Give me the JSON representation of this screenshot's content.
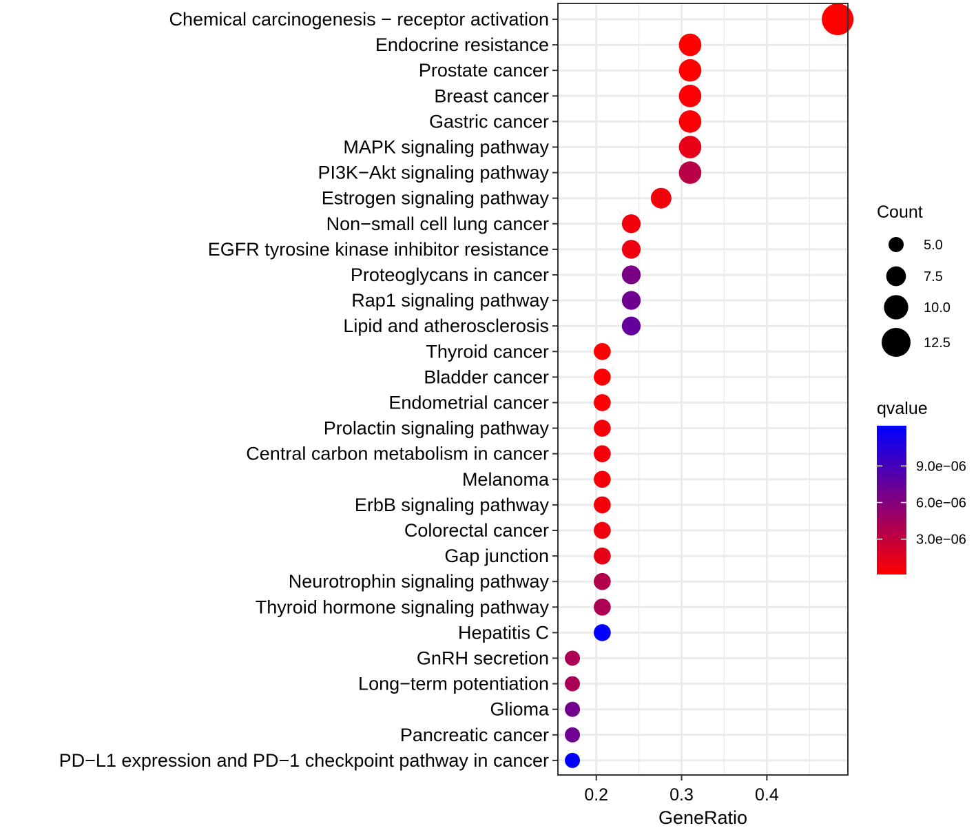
{
  "chart_data": {
    "type": "scatter",
    "xlabel": "GeneRatio",
    "ylabel": "",
    "xlim": [
      0.155,
      0.495
    ],
    "x_ticks": [
      0.2,
      0.3,
      0.4
    ],
    "x_tick_labels": [
      "0.2",
      "0.3",
      "0.4"
    ],
    "grid": true,
    "legend_position": "right",
    "points": [
      {
        "term": "Chemical carcinogenesis − receptor activation",
        "gene_ratio": 0.483,
        "count": 14,
        "qvalue": 1e-07
      },
      {
        "term": "Endocrine resistance",
        "gene_ratio": 0.31,
        "count": 9,
        "qvalue": 1e-07
      },
      {
        "term": "Prostate cancer",
        "gene_ratio": 0.31,
        "count": 9,
        "qvalue": 2e-07
      },
      {
        "term": "Breast cancer",
        "gene_ratio": 0.31,
        "count": 9,
        "qvalue": 3e-07
      },
      {
        "term": "Gastric cancer",
        "gene_ratio": 0.31,
        "count": 9,
        "qvalue": 3e-07
      },
      {
        "term": "MAPK signaling pathway",
        "gene_ratio": 0.31,
        "count": 9,
        "qvalue": 1.2e-06
      },
      {
        "term": "PI3K−Akt signaling pathway",
        "gene_ratio": 0.31,
        "count": 9,
        "qvalue": 3.5e-06
      },
      {
        "term": "Estrogen signaling pathway",
        "gene_ratio": 0.276,
        "count": 8,
        "qvalue": 6e-07
      },
      {
        "term": "Non−small cell lung cancer",
        "gene_ratio": 0.241,
        "count": 7,
        "qvalue": 7e-07
      },
      {
        "term": "EGFR tyrosine kinase inhibitor resistance",
        "gene_ratio": 0.241,
        "count": 7,
        "qvalue": 9e-07
      },
      {
        "term": "Proteoglycans in cancer",
        "gene_ratio": 0.241,
        "count": 7,
        "qvalue": 6.5e-06
      },
      {
        "term": "Rap1 signaling pathway",
        "gene_ratio": 0.241,
        "count": 7,
        "qvalue": 7e-06
      },
      {
        "term": "Lipid and atherosclerosis",
        "gene_ratio": 0.241,
        "count": 7,
        "qvalue": 7.5e-06
      },
      {
        "term": "Thyroid cancer",
        "gene_ratio": 0.207,
        "count": 6,
        "qvalue": 2e-07
      },
      {
        "term": "Bladder cancer",
        "gene_ratio": 0.207,
        "count": 6,
        "qvalue": 2e-07
      },
      {
        "term": "Endometrial cancer",
        "gene_ratio": 0.207,
        "count": 6,
        "qvalue": 3e-07
      },
      {
        "term": "Prolactin signaling pathway",
        "gene_ratio": 0.207,
        "count": 6,
        "qvalue": 6e-07
      },
      {
        "term": "Central carbon metabolism in cancer",
        "gene_ratio": 0.207,
        "count": 6,
        "qvalue": 6e-07
      },
      {
        "term": "Melanoma",
        "gene_ratio": 0.207,
        "count": 6,
        "qvalue": 6e-07
      },
      {
        "term": "ErbB signaling pathway",
        "gene_ratio": 0.207,
        "count": 6,
        "qvalue": 6.5e-07
      },
      {
        "term": "Colorectal cancer",
        "gene_ratio": 0.207,
        "count": 6,
        "qvalue": 8e-07
      },
      {
        "term": "Gap junction",
        "gene_ratio": 0.207,
        "count": 6,
        "qvalue": 1.2e-06
      },
      {
        "term": "Neurotrophin signaling pathway",
        "gene_ratio": 0.207,
        "count": 6,
        "qvalue": 3.8e-06
      },
      {
        "term": "Thyroid hormone signaling pathway",
        "gene_ratio": 0.207,
        "count": 6,
        "qvalue": 4e-06
      },
      {
        "term": "Hepatitis C",
        "gene_ratio": 0.207,
        "count": 6,
        "qvalue": 1.22e-05
      },
      {
        "term": "GnRH secretion",
        "gene_ratio": 0.172,
        "count": 5,
        "qvalue": 4e-06
      },
      {
        "term": "Long−term potentiation",
        "gene_ratio": 0.172,
        "count": 5,
        "qvalue": 4.2e-06
      },
      {
        "term": "Glioma",
        "gene_ratio": 0.172,
        "count": 5,
        "qvalue": 6.8e-06
      },
      {
        "term": "Pancreatic cancer",
        "gene_ratio": 0.172,
        "count": 5,
        "qvalue": 7e-06
      },
      {
        "term": "PD−L1 expression and PD−1 checkpoint pathway in cancer",
        "gene_ratio": 0.172,
        "count": 5,
        "qvalue": 1.23e-05
      }
    ],
    "size_legend": {
      "title": "Count",
      "breaks": [
        5.0,
        7.5,
        10.0,
        12.5
      ],
      "labels": [
        "5.0",
        "7.5",
        "10.0",
        "12.5"
      ],
      "range": [
        5,
        14
      ]
    },
    "color_legend": {
      "title": "qvalue",
      "low_color": "#ff0000",
      "high_color": "#0000ff",
      "domain": [
        1e-07,
        1.23e-05
      ],
      "breaks": [
        3e-06,
        6e-06,
        9e-06
      ],
      "labels": [
        "3.0e−06",
        "6.0e−06",
        "9.0e−06"
      ]
    }
  }
}
